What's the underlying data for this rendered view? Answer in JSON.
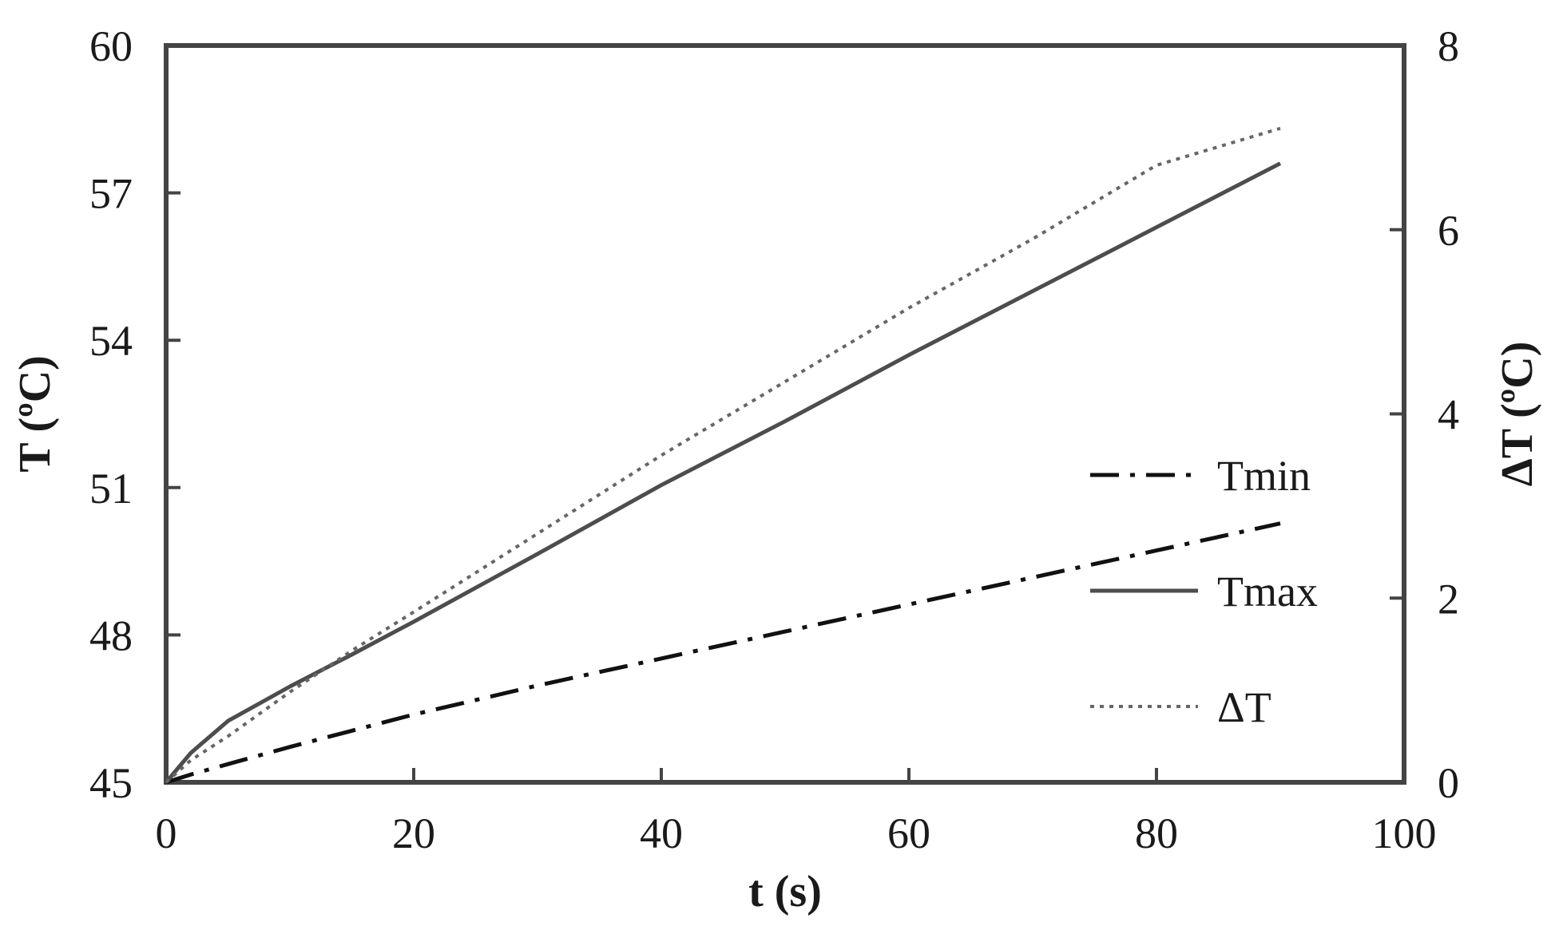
{
  "chart_data": {
    "type": "line",
    "title": "",
    "xlabel": "t (s)",
    "ylabel": "T (ºC)",
    "y2label": "ΔT (ºC)",
    "xlim": [
      0,
      100
    ],
    "ylim": [
      45,
      60
    ],
    "y2lim": [
      0,
      8
    ],
    "x_ticks": [
      0,
      20,
      40,
      60,
      80,
      100
    ],
    "y_ticks": [
      45,
      48,
      51,
      54,
      57,
      60
    ],
    "y2_ticks": [
      0,
      2,
      4,
      6,
      8
    ],
    "grid": false,
    "legend_position": "right-center",
    "series": [
      {
        "name": "Tmin",
        "axis": "left",
        "style": "dash-dot",
        "color": "#111111",
        "x": [
          0,
          1,
          2,
          5,
          10,
          15,
          20,
          30,
          40,
          50,
          60,
          70,
          80,
          90
        ],
        "y": [
          45.0,
          45.08,
          45.16,
          45.37,
          45.72,
          46.05,
          46.38,
          46.97,
          47.52,
          48.07,
          48.62,
          49.17,
          49.72,
          50.27
        ]
      },
      {
        "name": "Tmax",
        "axis": "left",
        "style": "solid",
        "color": "#4d4d4d",
        "x": [
          0,
          1,
          2,
          5,
          10,
          15,
          20,
          30,
          40,
          50,
          60,
          70,
          80,
          90
        ],
        "y": [
          45.0,
          45.3,
          45.6,
          46.25,
          46.95,
          47.6,
          48.27,
          49.65,
          51.05,
          52.35,
          53.7,
          55.0,
          56.3,
          57.6
        ]
      },
      {
        "name": "ΔT",
        "axis": "right",
        "style": "dotted",
        "color": "#666666",
        "x": [
          0,
          1,
          2,
          5,
          10,
          15,
          20,
          30,
          40,
          50,
          60,
          70,
          80,
          90
        ],
        "y": [
          0.0,
          0.12,
          0.24,
          0.5,
          0.98,
          1.43,
          1.85,
          2.7,
          3.55,
          4.35,
          5.15,
          5.9,
          6.7,
          7.1
        ]
      }
    ]
  }
}
